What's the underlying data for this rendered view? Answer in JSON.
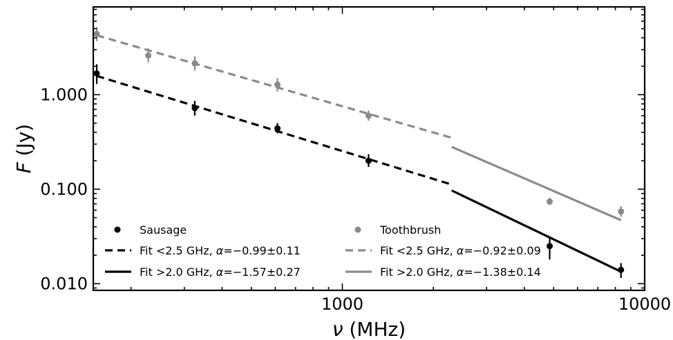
{
  "chart_data": {
    "type": "scatter",
    "xlabel": "ν (MHz)",
    "ylabel": "F (Jy)",
    "xscale": "log",
    "yscale": "log",
    "xlim": [
      150,
      10000
    ],
    "ylim": [
      0.0085,
      8.5
    ],
    "xticks": [
      {
        "value": 1000,
        "label": "1000"
      },
      {
        "value": 10000,
        "label": "10000"
      }
    ],
    "yticks": [
      {
        "value": 0.01,
        "label": "0.010"
      },
      {
        "value": 0.1,
        "label": "0.100"
      },
      {
        "value": 1,
        "label": "1.000"
      }
    ],
    "grid": false,
    "legend_position": "bottom-left",
    "colors": {
      "sausage": "#000000",
      "toothbrush": "#8a8a8a"
    },
    "series": [
      {
        "name": "Sausage",
        "kind": "points",
        "color": "#000000",
        "points": [
          {
            "x": 154,
            "y": 1.68,
            "ylo": 1.3,
            "yhi": 2.1
          },
          {
            "x": 325,
            "y": 0.72,
            "ylo": 0.6,
            "yhi": 0.86
          },
          {
            "x": 610,
            "y": 0.44,
            "ylo": 0.39,
            "yhi": 0.5
          },
          {
            "x": 1221,
            "y": 0.2,
            "ylo": 0.172,
            "yhi": 0.235
          },
          {
            "x": 4850,
            "y": 0.025,
            "ylo": 0.018,
            "yhi": 0.031
          },
          {
            "x": 8350,
            "y": 0.014,
            "ylo": 0.0115,
            "yhi": 0.0165
          }
        ]
      },
      {
        "name": "Toothbrush",
        "kind": "points",
        "color": "#8a8a8a",
        "points": [
          {
            "x": 154,
            "y": 4.4,
            "ylo": 3.7,
            "yhi": 5.2
          },
          {
            "x": 228,
            "y": 2.6,
            "ylo": 2.2,
            "yhi": 3.1
          },
          {
            "x": 325,
            "y": 2.15,
            "ylo": 1.8,
            "yhi": 2.55
          },
          {
            "x": 610,
            "y": 1.28,
            "ylo": 1.08,
            "yhi": 1.5
          },
          {
            "x": 1221,
            "y": 0.6,
            "ylo": 0.53,
            "yhi": 0.68
          },
          {
            "x": 4850,
            "y": 0.074,
            "ylo": 0.068,
            "yhi": 0.081
          },
          {
            "x": 8350,
            "y": 0.058,
            "ylo": 0.051,
            "yhi": 0.066
          }
        ]
      },
      {
        "name": "Fit <2.5 GHz, α=−0.99±0.11",
        "kind": "line",
        "style": "dashed",
        "color": "#000000",
        "x": [
          154,
          2300
        ],
        "y": [
          1.58,
          0.112
        ]
      },
      {
        "name": "Fit >2.0 GHz, α=−1.57±0.27",
        "kind": "line",
        "style": "solid",
        "color": "#000000",
        "x": [
          2300,
          8350
        ],
        "y": [
          0.097,
          0.0134
        ]
      },
      {
        "name": "Fit <2.5 GHz, α=−0.92±0.09",
        "kind": "line",
        "style": "dashed",
        "color": "#8a8a8a",
        "x": [
          154,
          2300
        ],
        "y": [
          4.25,
          0.35
        ]
      },
      {
        "name": "Fit >2.0 GHz, α=−1.38±0.14",
        "kind": "line",
        "style": "solid",
        "color": "#8a8a8a",
        "x": [
          2300,
          8350
        ],
        "y": [
          0.28,
          0.047
        ]
      }
    ],
    "legend": [
      {
        "symbol": "dot",
        "color": "#000000",
        "label": "Sausage",
        "column": 0
      },
      {
        "symbol": "dashed",
        "color": "#000000",
        "label_pre": "Fit <2.5 GHz, ",
        "alpha": "α",
        "label_post": "=−0.99±0.11",
        "column": 0
      },
      {
        "symbol": "solid",
        "color": "#000000",
        "label_pre": "Fit >2.0 GHz, ",
        "alpha": "α",
        "label_post": "=−1.57±0.27",
        "column": 0
      },
      {
        "symbol": "dot",
        "color": "#8a8a8a",
        "label": "Toothbrush",
        "column": 1
      },
      {
        "symbol": "dashed",
        "color": "#8a8a8a",
        "label_pre": "Fit <2.5 GHz, ",
        "alpha": "α",
        "label_post": "=−0.92±0.09",
        "column": 1
      },
      {
        "symbol": "solid",
        "color": "#8a8a8a",
        "label_pre": "Fit >2.0 GHz, ",
        "alpha": "α",
        "label_post": "=−1.38±0.14",
        "column": 1
      }
    ]
  }
}
